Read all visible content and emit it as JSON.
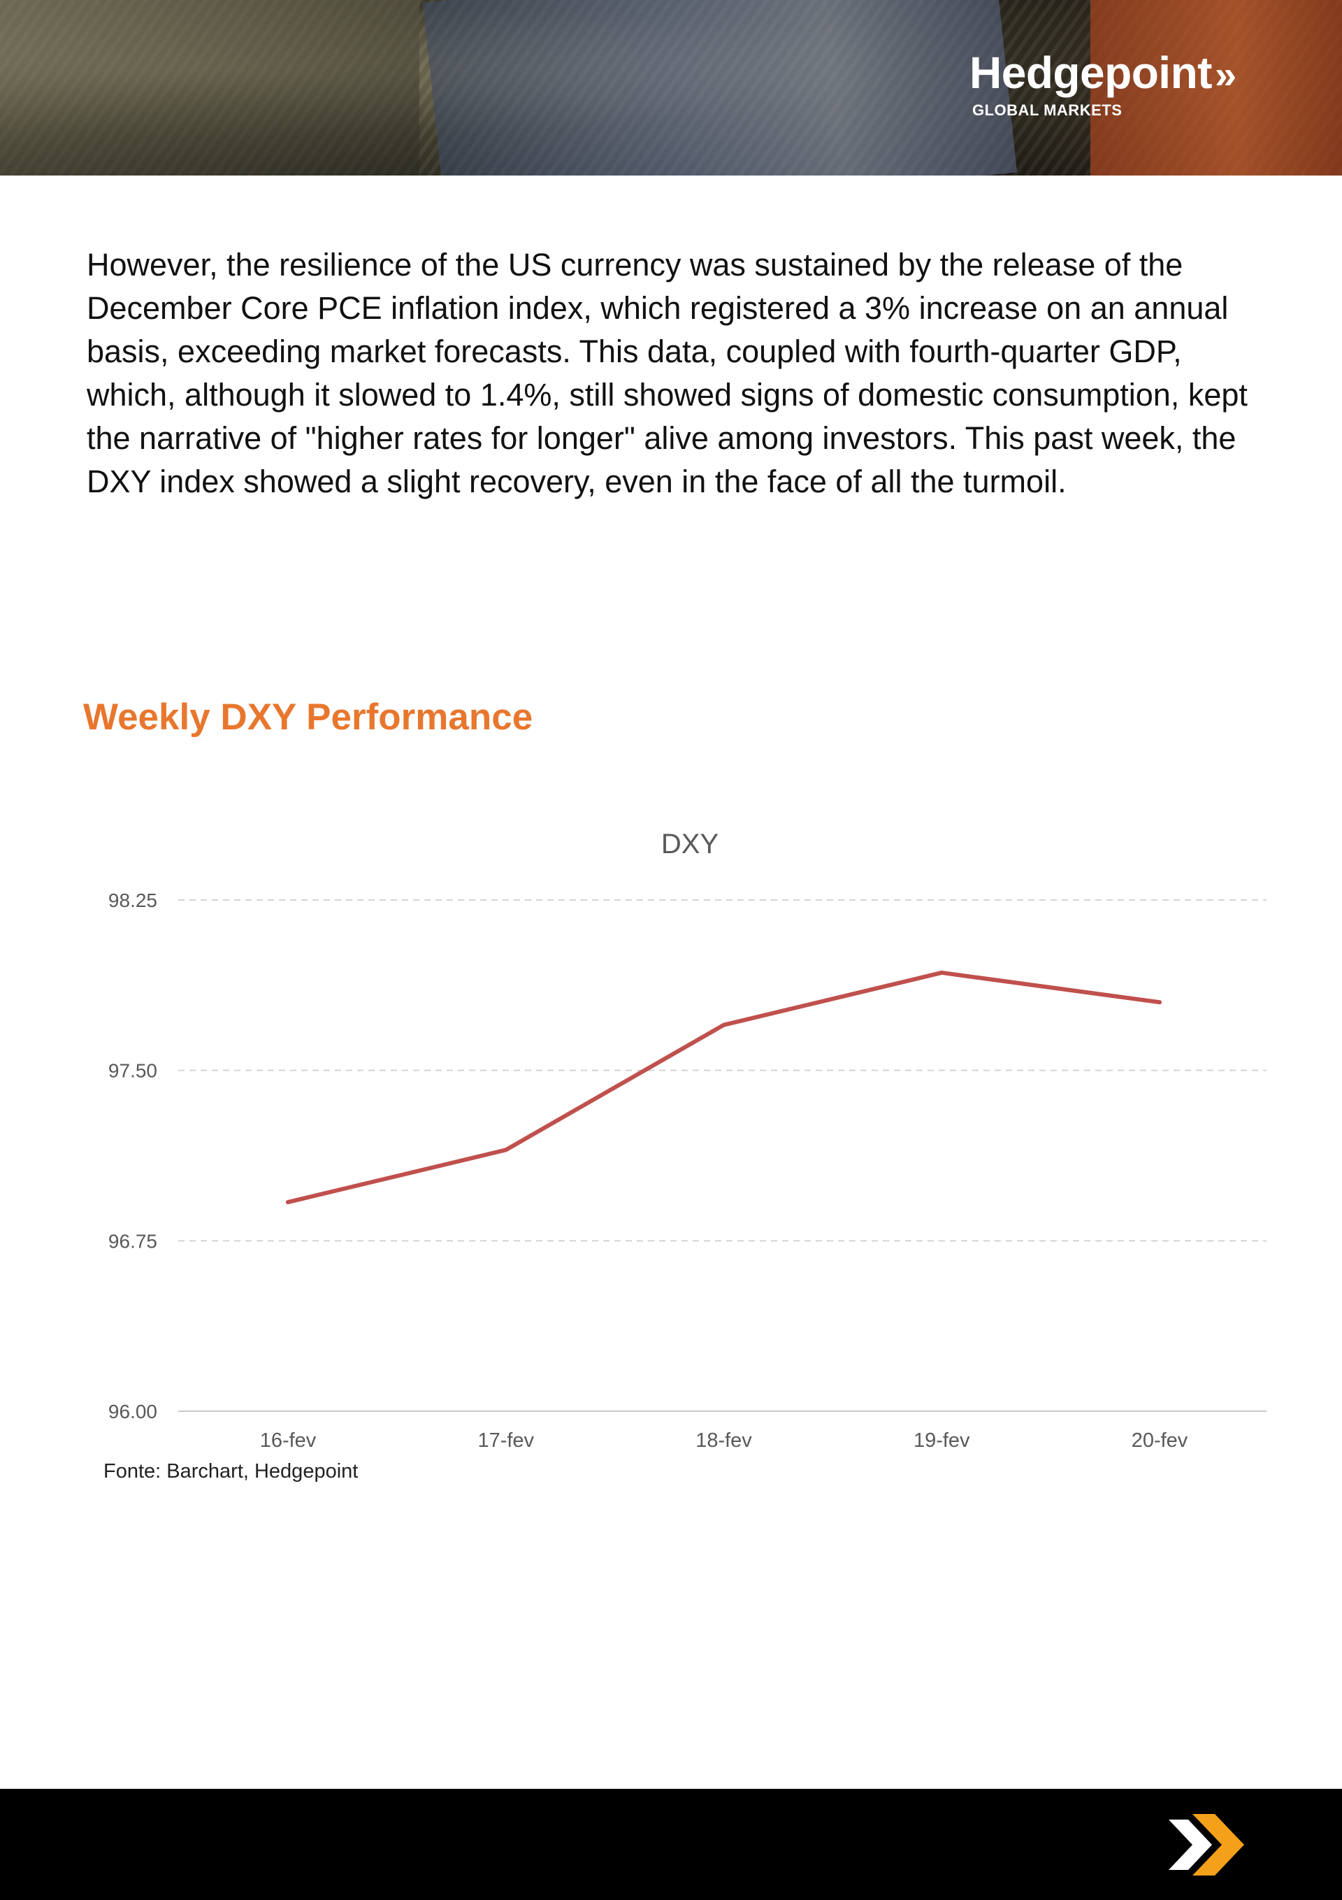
{
  "header": {
    "brand_name": "Hedgepoint",
    "brand_chevrons": "»",
    "brand_sub": "GLOBAL MARKETS"
  },
  "body": {
    "paragraph": "However, the resilience of the US currency was sustained by the release of the December Core PCE inflation index, which registered a 3% increase on an annual basis, exceeding market forecasts. This data, coupled with fourth-quarter GDP, which, although it slowed to 1.4%, still showed signs of domestic consumption, kept the narrative of \"higher rates for longer\" alive among investors. This past week, the DXY index showed a slight recovery, even in the face of all the turmoil."
  },
  "section": {
    "title": "Weekly DXY Performance"
  },
  "chart_data": {
    "type": "line",
    "title": "DXY",
    "xlabel": "",
    "ylabel": "",
    "categories": [
      "16-fev",
      "17-fev",
      "18-fev",
      "19-fev",
      "20-fev"
    ],
    "series": [
      {
        "values": [
          96.92,
          97.15,
          97.7,
          97.93,
          97.8
        ],
        "color": "#c0504d"
      }
    ],
    "ylim": [
      96.0,
      98.25
    ],
    "yticks": [
      "96.00",
      "96.75",
      "97.50",
      "98.25"
    ],
    "grid": true,
    "legend": "none",
    "source": "Fonte: Barchart, Hedgepoint"
  }
}
